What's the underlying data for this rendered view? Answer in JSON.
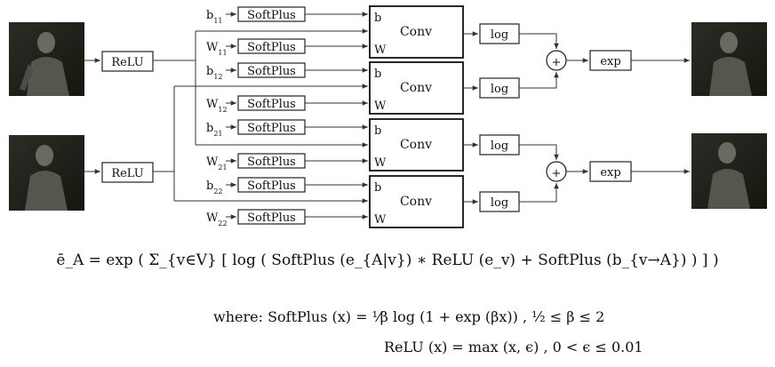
{
  "diagram": {
    "relu_label": "ReLU",
    "softplus_label": "SoftPlus",
    "conv_label": "Conv",
    "conv_port_b": "b",
    "conv_port_w": "W",
    "log_label": "log",
    "plus_label": "+",
    "exp_label": "exp",
    "param_base_b": "b",
    "param_base_w": "W",
    "param_subs": [
      "11",
      "11",
      "12",
      "12",
      "21",
      "21",
      "22",
      "22"
    ],
    "param_letters": [
      "b",
      "W",
      "b",
      "W",
      "b",
      "W",
      "b",
      "W"
    ]
  },
  "formulas": {
    "main": "ē_A = exp ( Σ_{v∈V} [ log ( SoftPlus (e_{A|v}) ∗ ReLU (e_v) + SoftPlus (b_{v→A}) ) ] )",
    "where": "where:  SoftPlus (x) = ¹⁄β log (1 + exp (βx)) , ¹⁄₂ ≤ β ≤ 2",
    "relu": "ReLU (x) = max (x, ϵ) , 0 < ϵ ≤ 0.01"
  },
  "colors": {
    "line": "#333333",
    "photo_dark": "#1c1f1a",
    "photo_mid": "#4a4c42",
    "shirt": "#5a5c55"
  }
}
